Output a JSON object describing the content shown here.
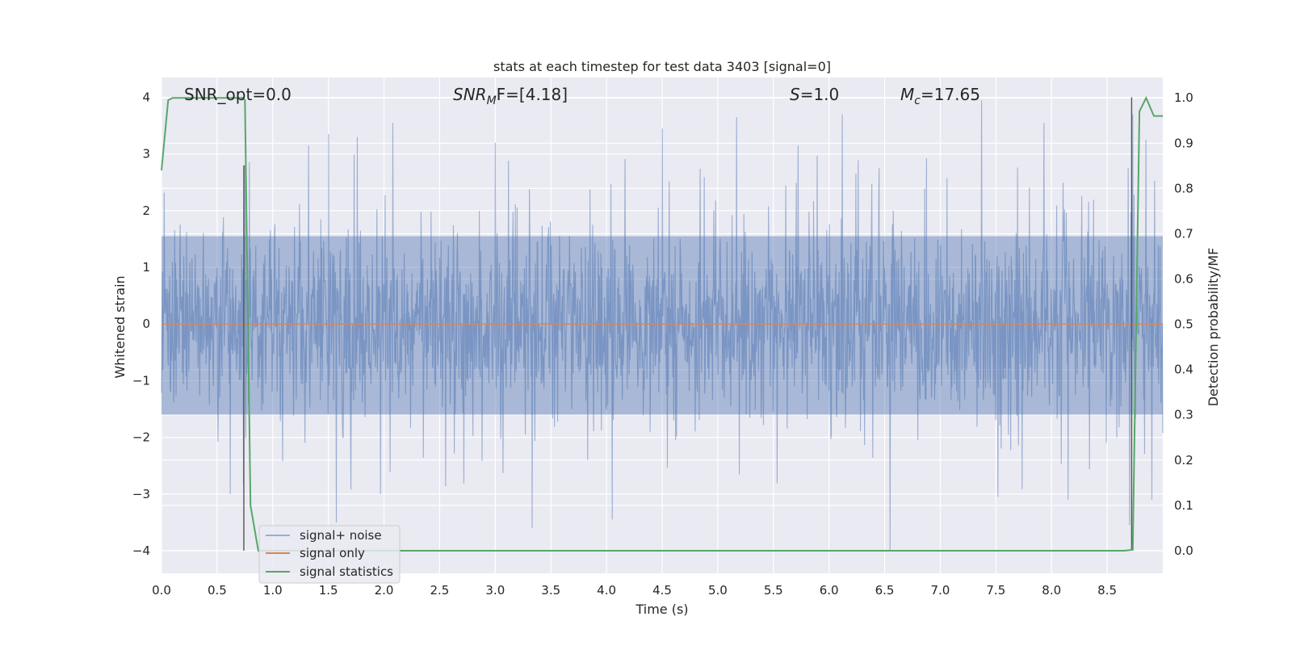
{
  "chart_data": {
    "type": "line",
    "title": "stats at each timestep for test data 3403 [signal=0]",
    "xlabel": "Time (s)",
    "ylabel": "Whitened strain",
    "ylabel_right": "Detection probability/MF",
    "xlim": [
      0.0,
      9.0
    ],
    "ylim": [
      -4.4,
      4.35
    ],
    "ylim_right": [
      -0.05,
      1.045
    ],
    "x_ticks": [
      "0.0",
      "0.5",
      "1.0",
      "1.5",
      "2.0",
      "2.5",
      "3.0",
      "3.5",
      "4.0",
      "4.5",
      "5.0",
      "5.5",
      "6.0",
      "6.5",
      "7.0",
      "7.5",
      "8.0",
      "8.5"
    ],
    "y_ticks_left": [
      "−4",
      "−3",
      "−2",
      "−1",
      "0",
      "1",
      "2",
      "3",
      "4"
    ],
    "y_ticks_right": [
      "0.0",
      "0.1",
      "0.2",
      "0.3",
      "0.4",
      "0.5",
      "0.6",
      "0.7",
      "0.8",
      "0.9",
      "1.0"
    ],
    "grid": true,
    "legend_position": "lower-left",
    "annotations": {
      "snr_opt": "SNR_opt=0.0",
      "snr_mf_label": "SNR",
      "snr_mf_sub": "M",
      "snr_mf_tail": "F=[4.18]",
      "s_label": "S",
      "s_tail": "=1.0",
      "mc_label": "M",
      "mc_sub": "c",
      "mc_tail": "=17.65"
    },
    "series": [
      {
        "name": "signal+ noise",
        "color": "#4c72b0",
        "opacity": 0.5,
        "axis": "left",
        "description_points": {
          "spikes_up": [
            [
              0.75,
              2.8
            ],
            [
              1.32,
              3.15
            ],
            [
              1.5,
              3.35
            ],
            [
              1.76,
              3.3
            ],
            [
              2.08,
              3.55
            ],
            [
              3.0,
              3.2
            ],
            [
              4.5,
              3.45
            ],
            [
              5.17,
              3.65
            ],
            [
              5.72,
              3.15
            ],
            [
              6.12,
              3.7
            ],
            [
              7.37,
              3.95
            ],
            [
              7.93,
              3.55
            ],
            [
              8.73,
              3.7
            ],
            [
              8.85,
              3.25
            ]
          ],
          "spikes_down": [
            [
              0.62,
              -3.0
            ],
            [
              1.57,
              -3.5
            ],
            [
              1.97,
              -3.0
            ],
            [
              3.33,
              -3.6
            ],
            [
              4.05,
              -3.45
            ],
            [
              6.55,
              -4.0
            ],
            [
              7.52,
              -3.05
            ],
            [
              8.15,
              -3.1
            ],
            [
              8.7,
              -3.55
            ],
            [
              8.9,
              -3.1
            ]
          ],
          "band_upper": 1.55,
          "band_lower": -1.6
        }
      },
      {
        "name": "signal only",
        "color": "#dd8452",
        "axis": "left",
        "x": [
          0.0,
          9.0
        ],
        "y": [
          0.0,
          0.0
        ]
      },
      {
        "name": "signal statistics",
        "color": "#55a868",
        "axis": "right",
        "x": [
          0.0,
          0.06,
          0.1,
          0.2,
          0.35,
          0.5,
          0.65,
          0.73,
          0.75,
          0.8,
          0.87,
          1.0,
          2.0,
          4.0,
          6.0,
          8.0,
          8.65,
          8.73,
          8.79,
          8.85,
          8.92,
          9.0
        ],
        "y": [
          0.84,
          0.995,
          1.0,
          1.0,
          1.0,
          1.0,
          1.0,
          1.0,
          0.995,
          0.1,
          0.0,
          0.0,
          0.0,
          0.0,
          0.0,
          0.0,
          0.0,
          0.002,
          0.97,
          1.0,
          0.96,
          0.96
        ]
      }
    ],
    "vertical_markers": [
      {
        "x": 0.74,
        "y0": -4.0,
        "y1": 2.8,
        "color": "#555555"
      },
      {
        "x": 8.72,
        "y0": -4.0,
        "y1": 4.0,
        "color": "#555555"
      }
    ]
  }
}
